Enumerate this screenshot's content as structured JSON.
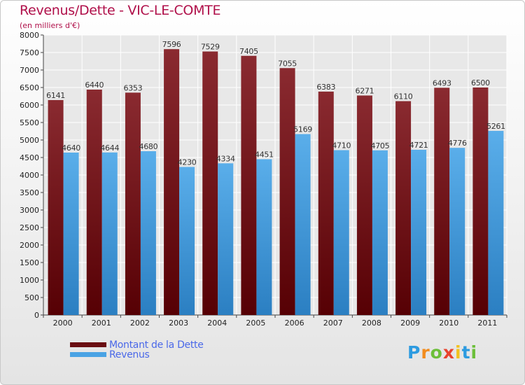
{
  "chart_data": {
    "type": "bar",
    "title": "Revenus/Dette - VIC-LE-COMTE",
    "subtitle": "(en milliers d'€)",
    "categories": [
      "2000",
      "2001",
      "2002",
      "2003",
      "2004",
      "2005",
      "2006",
      "2007",
      "2008",
      "2009",
      "2010",
      "2011"
    ],
    "series": [
      {
        "name": "Montant de la Dette",
        "color": "#7a1a1e",
        "values": [
          6141,
          6440,
          6353,
          7596,
          7529,
          7405,
          7055,
          6383,
          6271,
          6110,
          6493,
          6500
        ]
      },
      {
        "name": "Revenus",
        "color": "#4aa3e4",
        "values": [
          4640,
          4644,
          4680,
          4230,
          4334,
          4451,
          5169,
          4710,
          4705,
          4721,
          4776,
          5261
        ]
      }
    ],
    "ylim": [
      0,
      8000
    ],
    "yticks": [
      0,
      500,
      1000,
      1500,
      2000,
      2500,
      3000,
      3500,
      4000,
      4500,
      5000,
      5500,
      6000,
      6500,
      7000,
      7500,
      8000
    ],
    "grid": true,
    "legend_position": "bottom-left"
  },
  "logo": {
    "letters": [
      "P",
      "r",
      "o",
      "x",
      "i",
      "t",
      "i"
    ],
    "colors": [
      "#2d9be0",
      "#f28c1e",
      "#6cbf3a",
      "#e8432e",
      "#f2c21e",
      "#2d9be0",
      "#6cbf3a"
    ]
  }
}
